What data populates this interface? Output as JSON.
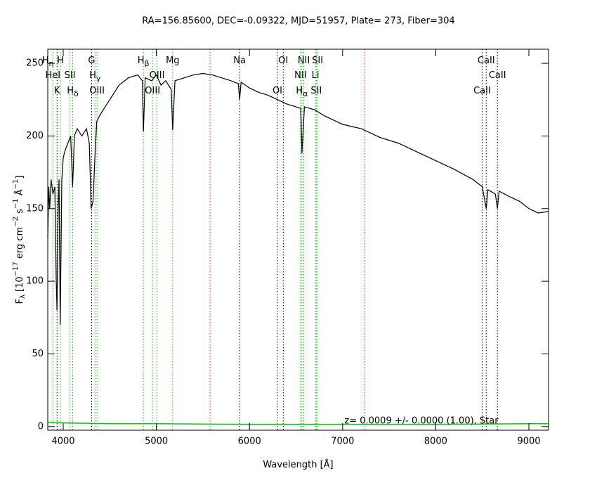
{
  "chart_data": {
    "type": "line",
    "title": "RA=156.85600, DEC=-0.09322, MJD=51957, Plate=  273, Fiber=304",
    "xlabel": [
      {
        "t": "Wavelength [Å]"
      }
    ],
    "ylabel": [
      {
        "t": "F"
      },
      {
        "t": "λ",
        "sub": true
      },
      {
        "t": " [10"
      },
      {
        "t": "−17",
        "sup": true
      },
      {
        "t": " erg cm"
      },
      {
        "t": "−2",
        "sup": true
      },
      {
        "t": " s"
      },
      {
        "t": "−1",
        "sup": true
      },
      {
        "t": " Å"
      },
      {
        "t": "−1",
        "sup": true
      },
      {
        "t": "]"
      }
    ],
    "annotation": "z= 0.0009 +/- 0.0000 (1.00), Star",
    "xlim": [
      3834,
      9211
    ],
    "ylim": [
      -2.5,
      259.7
    ],
    "xticks": [
      4000,
      5000,
      6000,
      7000,
      8000,
      9000
    ],
    "yticks": [
      0,
      50,
      100,
      150,
      200,
      250
    ],
    "series": [
      {
        "name": "flux",
        "color": "#000000",
        "x": [
          3834,
          3845,
          3855,
          3870,
          3890,
          3910,
          3925,
          3933,
          3945,
          3955,
          3968,
          3985,
          4000,
          4020,
          4050,
          4080,
          4101,
          4120,
          4150,
          4200,
          4250,
          4280,
          4300,
          4320,
          4340,
          4360,
          4400,
          4450,
          4500,
          4550,
          4600,
          4700,
          4800,
          4850,
          4861,
          4880,
          4950,
          5000,
          5050,
          5100,
          5160,
          5175,
          5200,
          5300,
          5400,
          5500,
          5600,
          5700,
          5800,
          5880,
          5894,
          5910,
          6000,
          6100,
          6200,
          6300,
          6400,
          6500,
          6550,
          6563,
          6590,
          6700,
          6800,
          6900,
          7000,
          7200,
          7400,
          7600,
          7800,
          8000,
          8200,
          8400,
          8500,
          8542,
          8560,
          8640,
          8662,
          8680,
          8800,
          8900,
          9000,
          9100,
          9211
        ],
        "values": [
          130,
          165,
          150,
          170,
          160,
          165,
          100,
          80,
          150,
          170,
          70,
          170,
          185,
          190,
          195,
          200,
          165,
          200,
          205,
          200,
          205,
          195,
          150,
          155,
          185,
          210,
          215,
          220,
          225,
          230,
          235,
          240,
          242,
          238,
          203,
          240,
          238,
          242,
          235,
          238,
          232,
          204,
          238,
          240,
          242,
          243,
          242,
          240,
          238,
          236,
          225,
          237,
          233,
          230,
          228,
          225,
          222,
          220,
          219,
          188,
          220,
          218,
          214,
          211,
          208,
          205,
          199,
          195,
          189,
          183,
          177,
          170,
          165,
          150,
          163,
          160,
          150,
          162,
          158,
          155,
          150,
          147,
          148
        ]
      },
      {
        "name": "error",
        "color": "#00cc00",
        "x": [
          3834,
          4000,
          4500,
          5000,
          6000,
          7000,
          8000,
          9000,
          9211
        ],
        "values": [
          3,
          2.5,
          2,
          2,
          1.5,
          1.5,
          1.5,
          2,
          2
        ]
      }
    ],
    "sky_lines": [
      {
        "wavelength": 5577,
        "color": "#ff00ff"
      },
      {
        "wavelength": 7240,
        "color": "#ff00ff"
      }
    ],
    "lines": [
      [
        {
          "wavelength": 3835,
          "label": "H",
          "sub": "η",
          "color": "#00cc00"
        },
        {
          "wavelength": 3970,
          "label": "H",
          "color": "#00cc00"
        },
        {
          "wavelength": 4305,
          "label": "G",
          "color": "#000000"
        },
        {
          "wavelength": 4861,
          "label": "H",
          "sub": "β",
          "color": "#00cc00"
        },
        {
          "wavelength": 5175,
          "label": "Mg",
          "color": "#00cc00"
        },
        {
          "wavelength": 5894,
          "label": "Na",
          "color": "#000000"
        },
        {
          "wavelength": 6363,
          "label": "OI",
          "color": "#000000"
        },
        {
          "wavelength": 6583,
          "label": "NII",
          "color": "#00cc00"
        },
        {
          "wavelength": 6731,
          "label": "SII",
          "color": "#00cc00"
        },
        {
          "wavelength": 8542,
          "label": "CaII",
          "color": "#000000"
        }
      ],
      [
        {
          "wavelength": 3889,
          "label": "HeI",
          "color": "#00cc00"
        },
        {
          "wavelength": 4072,
          "label": "SII",
          "color": "#00cc00"
        },
        {
          "wavelength": 4341,
          "label": "H",
          "sub": "γ",
          "color": "#00cc00"
        },
        {
          "wavelength": 5007,
          "label": "OIII",
          "color": "#00cc00"
        },
        {
          "wavelength": 6548,
          "label": "NII",
          "color": "#00cc00"
        },
        {
          "wavelength": 6708,
          "label": "Li",
          "color": "#00cc00"
        },
        {
          "wavelength": 8662,
          "label": "CaII",
          "color": "#000000"
        }
      ],
      [
        {
          "wavelength": 3934,
          "label": "K",
          "color": "#000000"
        },
        {
          "wavelength": 4102,
          "label": "H",
          "sub": "δ",
          "color": "#00cc00"
        },
        {
          "wavelength": 4363,
          "label": "OIII",
          "color": "#00cc00"
        },
        {
          "wavelength": 4959,
          "label": "OIII",
          "color": "#00cc00"
        },
        {
          "wavelength": 6300,
          "label": "OI",
          "color": "#000000"
        },
        {
          "wavelength": 6563,
          "label": "H",
          "sub": "α",
          "color": "#00cc00"
        },
        {
          "wavelength": 6717,
          "label": "SII",
          "color": "#00cc00"
        },
        {
          "wavelength": 8498,
          "label": "CaII",
          "color": "#000000"
        }
      ]
    ]
  }
}
